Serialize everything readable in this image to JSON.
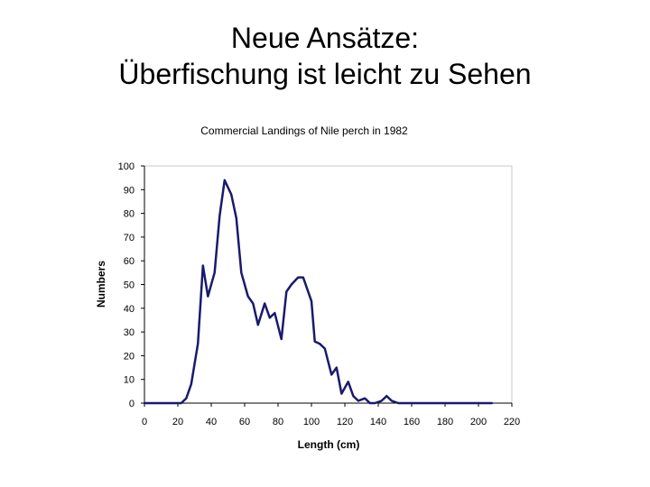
{
  "slide": {
    "title_line1": "Neue Ansätze:",
    "title_line2": "Überfischung ist leicht zu Sehen"
  },
  "chart_data": {
    "type": "line",
    "title": "Commercial Landings of Nile perch in 1982",
    "xlabel": "Length (cm)",
    "ylabel": "Numbers",
    "xlim": [
      0,
      220
    ],
    "ylim": [
      0,
      100
    ],
    "xticks": [
      0,
      20,
      40,
      60,
      80,
      100,
      120,
      140,
      160,
      180,
      200,
      220
    ],
    "yticks": [
      0,
      10,
      20,
      30,
      40,
      50,
      60,
      70,
      80,
      90,
      100
    ],
    "grid": false,
    "legend": "none",
    "series": [
      {
        "color": "#1a1a6e",
        "x": [
          0,
          5,
          10,
          15,
          20,
          22,
          25,
          28,
          32,
          35,
          38,
          42,
          45,
          48,
          52,
          55,
          58,
          62,
          65,
          68,
          72,
          75,
          78,
          82,
          85,
          88,
          92,
          95,
          100,
          102,
          105,
          108,
          112,
          115,
          118,
          122,
          125,
          128,
          132,
          135,
          138,
          142,
          145,
          148,
          152,
          155,
          158,
          162,
          165,
          168,
          172,
          175,
          180,
          185,
          190,
          195,
          200,
          205,
          208
        ],
        "y": [
          0,
          0,
          0,
          0,
          0,
          0,
          2,
          8,
          25,
          58,
          45,
          55,
          79,
          94,
          88,
          78,
          55,
          45,
          42,
          33,
          42,
          36,
          38,
          27,
          47,
          50,
          53,
          53,
          43,
          26,
          25,
          23,
          12,
          15,
          4,
          9,
          3,
          1,
          2,
          0,
          0,
          1,
          3,
          1,
          0,
          0,
          0,
          0,
          0,
          0,
          0,
          0,
          0,
          0,
          0,
          0,
          0,
          0,
          0
        ]
      }
    ]
  }
}
